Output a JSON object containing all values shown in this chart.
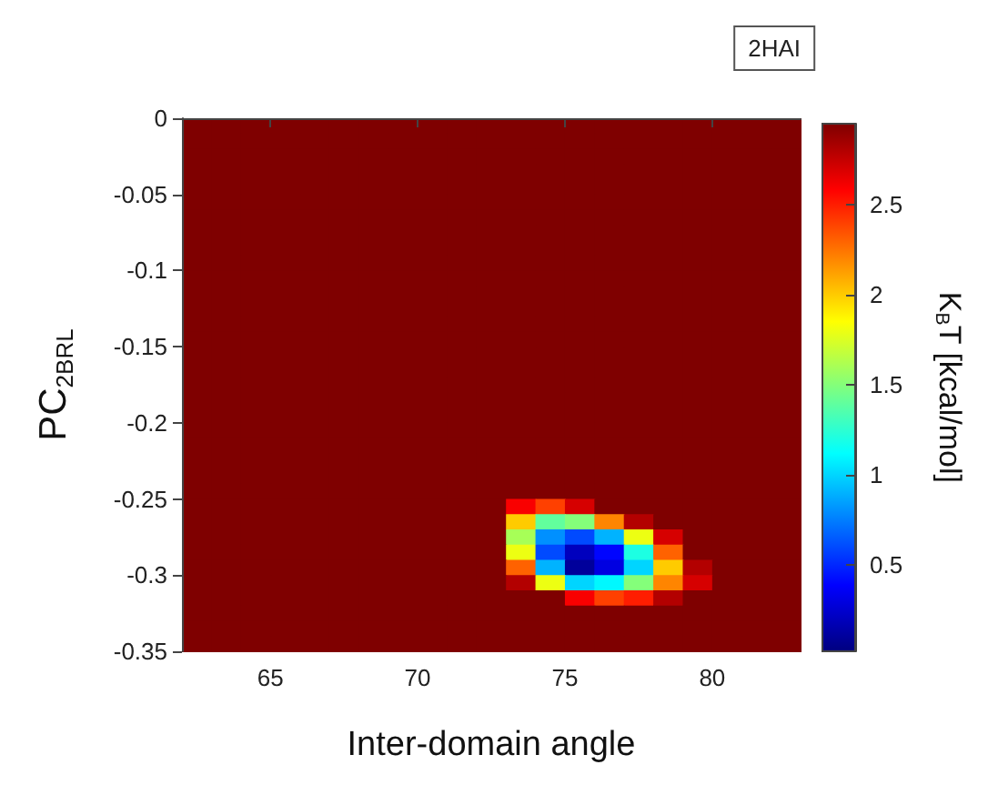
{
  "chart_data": {
    "type": "heatmap",
    "xlabel": "Inter-domain angle",
    "ylabel": "PC$_{2BRL}$",
    "clabel": "K$_{B}$T [kcal/mol]",
    "annotations": [
      "2HAI"
    ],
    "xlim": [
      62,
      83
    ],
    "xticks": [
      65,
      70,
      75,
      80
    ],
    "ylim": [
      -0.35,
      0
    ],
    "yticks": [
      0,
      -0.05,
      -0.1,
      -0.15,
      -0.2,
      -0.25,
      -0.3,
      -0.35
    ],
    "clim": [
      0.02,
      2.95
    ],
    "cticks": [
      0.5,
      1,
      1.5,
      2,
      2.5
    ],
    "x": [
      62.5,
      63.5,
      64.5,
      65.5,
      66.5,
      67.5,
      68.5,
      69.5,
      70.5,
      71.5,
      72.5,
      73.5,
      74.5,
      75.5,
      76.5,
      77.5,
      78.5,
      79.5,
      80.5,
      81.5,
      82.5
    ],
    "y": [
      -0.005,
      -0.015,
      -0.025,
      -0.035,
      -0.045,
      -0.055,
      -0.065,
      -0.075,
      -0.085,
      -0.095,
      -0.105,
      -0.115,
      -0.125,
      -0.135,
      -0.145,
      -0.155,
      -0.165,
      -0.175,
      -0.185,
      -0.195,
      -0.205,
      -0.215,
      -0.225,
      -0.235,
      -0.245,
      -0.255,
      -0.265,
      -0.275,
      -0.285,
      -0.295,
      -0.305,
      -0.315,
      -0.325,
      -0.335,
      -0.345
    ],
    "cells": [
      [
        2.95,
        2.95,
        2.95,
        2.95,
        2.95,
        2.95,
        2.95,
        2.95,
        2.95,
        2.95,
        2.95,
        2.95,
        2.95,
        2.95,
        2.95,
        2.95,
        2.95,
        2.95,
        2.95,
        2.95,
        2.95
      ],
      [
        2.95,
        2.95,
        2.95,
        2.95,
        2.95,
        2.95,
        2.95,
        2.95,
        2.95,
        2.95,
        2.95,
        2.95,
        2.95,
        2.95,
        2.95,
        2.95,
        2.95,
        2.95,
        2.95,
        2.95,
        2.95
      ],
      [
        2.95,
        2.95,
        2.95,
        2.95,
        2.95,
        2.95,
        2.95,
        2.95,
        2.95,
        2.95,
        2.95,
        2.95,
        2.95,
        2.95,
        2.95,
        2.95,
        2.95,
        2.95,
        2.95,
        2.95,
        2.95
      ],
      [
        2.95,
        2.95,
        2.95,
        2.95,
        2.95,
        2.95,
        2.95,
        2.95,
        2.95,
        2.95,
        2.95,
        2.95,
        2.95,
        2.95,
        2.95,
        2.95,
        2.95,
        2.95,
        2.95,
        2.95,
        2.95
      ],
      [
        2.95,
        2.95,
        2.95,
        2.95,
        2.95,
        2.95,
        2.95,
        2.95,
        2.95,
        2.95,
        2.95,
        2.95,
        2.95,
        2.95,
        2.95,
        2.95,
        2.95,
        2.95,
        2.95,
        2.95,
        2.95
      ],
      [
        2.95,
        2.95,
        2.95,
        2.95,
        2.95,
        2.95,
        2.95,
        2.95,
        2.95,
        2.95,
        2.95,
        2.95,
        2.95,
        2.95,
        2.95,
        2.95,
        2.95,
        2.95,
        2.95,
        2.95,
        2.95
      ],
      [
        2.95,
        2.95,
        2.95,
        2.95,
        2.95,
        2.95,
        2.95,
        2.95,
        2.95,
        2.95,
        2.95,
        2.95,
        2.95,
        2.95,
        2.95,
        2.95,
        2.95,
        2.95,
        2.95,
        2.95,
        2.95
      ],
      [
        2.95,
        2.95,
        2.95,
        2.95,
        2.95,
        2.95,
        2.95,
        2.95,
        2.95,
        2.95,
        2.95,
        2.95,
        2.95,
        2.95,
        2.95,
        2.95,
        2.95,
        2.95,
        2.95,
        2.95,
        2.95
      ],
      [
        2.95,
        2.95,
        2.95,
        2.95,
        2.95,
        2.95,
        2.95,
        2.95,
        2.95,
        2.95,
        2.95,
        2.95,
        2.95,
        2.95,
        2.95,
        2.95,
        2.95,
        2.95,
        2.95,
        2.95,
        2.95
      ],
      [
        2.95,
        2.95,
        2.95,
        2.95,
        2.95,
        2.95,
        2.95,
        2.95,
        2.95,
        2.95,
        2.95,
        2.95,
        2.95,
        2.95,
        2.95,
        2.95,
        2.95,
        2.95,
        2.95,
        2.95,
        2.95
      ],
      [
        2.95,
        2.95,
        2.95,
        2.95,
        2.95,
        2.95,
        2.95,
        2.95,
        2.95,
        2.95,
        2.95,
        2.95,
        2.95,
        2.95,
        2.95,
        2.95,
        2.95,
        2.95,
        2.95,
        2.95,
        2.95
      ],
      [
        2.95,
        2.95,
        2.95,
        2.95,
        2.95,
        2.95,
        2.95,
        2.95,
        2.95,
        2.95,
        2.95,
        2.95,
        2.95,
        2.95,
        2.95,
        2.95,
        2.95,
        2.95,
        2.95,
        2.95,
        2.95
      ],
      [
        2.95,
        2.95,
        2.95,
        2.95,
        2.95,
        2.95,
        2.95,
        2.95,
        2.95,
        2.95,
        2.95,
        2.95,
        2.95,
        2.95,
        2.95,
        2.95,
        2.95,
        2.95,
        2.95,
        2.95,
        2.95
      ],
      [
        2.95,
        2.95,
        2.95,
        2.95,
        2.95,
        2.95,
        2.95,
        2.95,
        2.95,
        2.95,
        2.95,
        2.95,
        2.95,
        2.95,
        2.95,
        2.95,
        2.95,
        2.95,
        2.95,
        2.95,
        2.95
      ],
      [
        2.95,
        2.95,
        2.95,
        2.95,
        2.95,
        2.95,
        2.95,
        2.95,
        2.95,
        2.95,
        2.95,
        2.95,
        2.95,
        2.95,
        2.95,
        2.95,
        2.95,
        2.95,
        2.95,
        2.95,
        2.95
      ],
      [
        2.95,
        2.95,
        2.95,
        2.95,
        2.95,
        2.95,
        2.95,
        2.95,
        2.95,
        2.95,
        2.95,
        2.95,
        2.95,
        2.95,
        2.95,
        2.95,
        2.95,
        2.95,
        2.95,
        2.95,
        2.95
      ],
      [
        2.95,
        2.95,
        2.95,
        2.95,
        2.95,
        2.95,
        2.95,
        2.95,
        2.95,
        2.95,
        2.95,
        2.95,
        2.95,
        2.95,
        2.95,
        2.95,
        2.95,
        2.95,
        2.95,
        2.95,
        2.95
      ],
      [
        2.95,
        2.95,
        2.95,
        2.95,
        2.95,
        2.95,
        2.95,
        2.95,
        2.95,
        2.95,
        2.95,
        2.95,
        2.95,
        2.95,
        2.95,
        2.95,
        2.95,
        2.95,
        2.95,
        2.95,
        2.95
      ],
      [
        2.95,
        2.95,
        2.95,
        2.95,
        2.95,
        2.95,
        2.95,
        2.95,
        2.95,
        2.95,
        2.95,
        2.95,
        2.95,
        2.95,
        2.95,
        2.95,
        2.95,
        2.95,
        2.95,
        2.95,
        2.95
      ],
      [
        2.95,
        2.95,
        2.95,
        2.95,
        2.95,
        2.95,
        2.95,
        2.95,
        2.95,
        2.95,
        2.95,
        2.95,
        2.95,
        2.95,
        2.95,
        2.95,
        2.95,
        2.95,
        2.95,
        2.95,
        2.95
      ],
      [
        2.95,
        2.95,
        2.95,
        2.95,
        2.95,
        2.95,
        2.95,
        2.95,
        2.95,
        2.95,
        2.95,
        2.95,
        2.95,
        2.95,
        2.95,
        2.95,
        2.95,
        2.95,
        2.95,
        2.95,
        2.95
      ],
      [
        2.95,
        2.95,
        2.95,
        2.95,
        2.95,
        2.95,
        2.95,
        2.95,
        2.95,
        2.95,
        2.95,
        2.95,
        2.95,
        2.95,
        2.95,
        2.95,
        2.95,
        2.95,
        2.95,
        2.95,
        2.95
      ],
      [
        2.95,
        2.95,
        2.95,
        2.95,
        2.95,
        2.95,
        2.95,
        2.95,
        2.95,
        2.95,
        2.95,
        2.95,
        2.95,
        2.95,
        2.95,
        2.95,
        2.95,
        2.95,
        2.95,
        2.95,
        2.95
      ],
      [
        2.95,
        2.95,
        2.95,
        2.95,
        2.95,
        2.95,
        2.95,
        2.95,
        2.95,
        2.95,
        2.95,
        2.95,
        2.95,
        2.95,
        2.95,
        2.95,
        2.95,
        2.95,
        2.95,
        2.95,
        2.95
      ],
      [
        2.95,
        2.95,
        2.95,
        2.95,
        2.95,
        2.95,
        2.95,
        2.95,
        2.95,
        2.95,
        2.95,
        2.95,
        2.95,
        2.95,
        2.95,
        2.95,
        2.95,
        2.95,
        2.95,
        2.95,
        2.95
      ],
      [
        2.95,
        2.95,
        2.95,
        2.95,
        2.95,
        2.95,
        2.95,
        2.95,
        2.95,
        2.95,
        2.95,
        2.6,
        2.4,
        2.7,
        2.95,
        2.95,
        2.95,
        2.95,
        2.95,
        2.95,
        2.95
      ],
      [
        2.95,
        2.95,
        2.95,
        2.95,
        2.95,
        2.95,
        2.95,
        2.95,
        2.95,
        2.95,
        2.95,
        2.0,
        1.4,
        1.5,
        2.2,
        2.8,
        2.95,
        2.95,
        2.95,
        2.95,
        2.95
      ],
      [
        2.95,
        2.95,
        2.95,
        2.95,
        2.95,
        2.95,
        2.95,
        2.95,
        2.95,
        2.95,
        2.95,
        1.6,
        0.8,
        0.6,
        0.9,
        1.8,
        2.7,
        2.95,
        2.95,
        2.95,
        2.95
      ],
      [
        2.95,
        2.95,
        2.95,
        2.95,
        2.95,
        2.95,
        2.95,
        2.95,
        2.95,
        2.95,
        2.95,
        1.8,
        0.6,
        0.2,
        0.4,
        1.2,
        2.3,
        2.95,
        2.95,
        2.95,
        2.95
      ],
      [
        2.95,
        2.95,
        2.95,
        2.95,
        2.95,
        2.95,
        2.95,
        2.95,
        2.95,
        2.95,
        2.95,
        2.3,
        0.9,
        0.1,
        0.3,
        1.0,
        2.0,
        2.8,
        2.95,
        2.95,
        2.95
      ],
      [
        2.95,
        2.95,
        2.95,
        2.95,
        2.95,
        2.95,
        2.95,
        2.95,
        2.95,
        2.95,
        2.95,
        2.8,
        1.8,
        1.0,
        1.1,
        1.5,
        2.2,
        2.7,
        2.95,
        2.95,
        2.95
      ],
      [
        2.95,
        2.95,
        2.95,
        2.95,
        2.95,
        2.95,
        2.95,
        2.95,
        2.95,
        2.95,
        2.95,
        2.95,
        2.95,
        2.6,
        2.4,
        2.5,
        2.8,
        2.95,
        2.95,
        2.95,
        2.95
      ],
      [
        2.95,
        2.95,
        2.95,
        2.95,
        2.95,
        2.95,
        2.95,
        2.95,
        2.95,
        2.95,
        2.95,
        2.95,
        2.95,
        2.95,
        2.95,
        2.95,
        2.95,
        2.95,
        2.95,
        2.95,
        2.95
      ],
      [
        2.95,
        2.95,
        2.95,
        2.95,
        2.95,
        2.95,
        2.95,
        2.95,
        2.95,
        2.95,
        2.95,
        2.95,
        2.95,
        2.95,
        2.95,
        2.95,
        2.95,
        2.95,
        2.95,
        2.95,
        2.95
      ],
      [
        2.95,
        2.95,
        2.95,
        2.95,
        2.95,
        2.95,
        2.95,
        2.95,
        2.95,
        2.95,
        2.95,
        2.95,
        2.95,
        2.95,
        2.95,
        2.95,
        2.95,
        2.95,
        2.95,
        2.95,
        2.95
      ]
    ]
  }
}
